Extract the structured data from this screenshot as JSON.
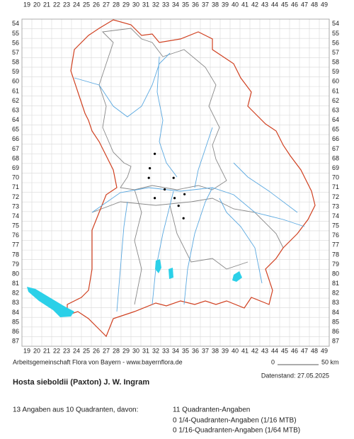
{
  "map": {
    "x_labels": [
      19,
      20,
      21,
      22,
      23,
      24,
      25,
      26,
      27,
      28,
      29,
      30,
      31,
      32,
      33,
      34,
      35,
      36,
      37,
      38,
      39,
      40,
      41,
      42,
      43,
      44,
      45,
      46,
      47,
      48,
      49
    ],
    "y_labels": [
      54,
      55,
      56,
      57,
      58,
      59,
      60,
      61,
      62,
      63,
      64,
      65,
      66,
      67,
      68,
      69,
      70,
      71,
      72,
      73,
      74,
      75,
      76,
      77,
      78,
      79,
      80,
      81,
      82,
      83,
      84,
      85,
      86,
      87
    ],
    "points": [
      {
        "x": 31.9,
        "y": 67.5
      },
      {
        "x": 31.4,
        "y": 69.0
      },
      {
        "x": 31.3,
        "y": 70.0
      },
      {
        "x": 33.8,
        "y": 70.0
      },
      {
        "x": 32.9,
        "y": 71.2
      },
      {
        "x": 31.9,
        "y": 72.1
      },
      {
        "x": 33.9,
        "y": 72.1
      },
      {
        "x": 34.9,
        "y": 71.7
      },
      {
        "x": 34.3,
        "y": 72.9
      },
      {
        "x": 34.8,
        "y": 74.2
      }
    ]
  },
  "footer": {
    "credit": "Arbeitsgemeinschaft Flora von Bayern - www.bayernflora.de",
    "scale_start": "0",
    "scale_end": "50 km",
    "date": "Datenstand: 27.05.2025"
  },
  "species": "Hosta sieboldii (Paxton) J. W. Ingram",
  "summary": {
    "total": "13 Angaben aus 10 Quadranten, davon:",
    "lines": [
      "11 Quadranten-Angaben",
      "0 1/4-Quadranten-Angaben (1/16 MTB)",
      "0 1/16-Quadranten-Angaben (1/64 MTB)"
    ]
  }
}
